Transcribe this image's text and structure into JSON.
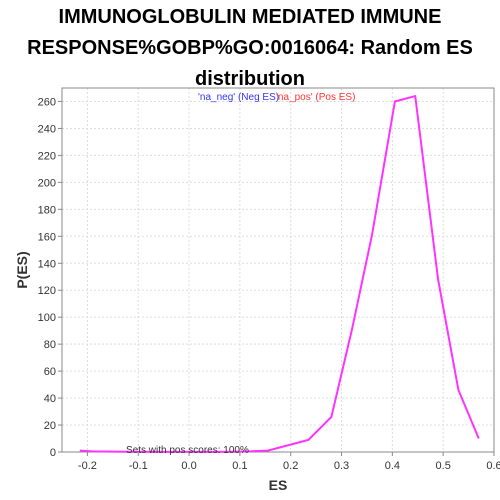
{
  "chart_data": {
    "type": "line",
    "title_lines": [
      "IMMUNOGLOBULIN MEDIATED IMMUNE",
      "RESPONSE%GOBP%GO:0016064: Random ES",
      "distribution"
    ],
    "xlabel": "ES",
    "ylabel": "P(ES)",
    "xlim": [
      -0.25,
      0.6
    ],
    "ylim": [
      0,
      270
    ],
    "xticks": [
      -0.2,
      -0.1,
      0.0,
      0.1,
      0.2,
      0.3,
      0.4,
      0.5,
      0.6
    ],
    "xtick_labels": [
      "-0.2",
      "-0.1",
      "0.0",
      "0.1",
      "0.2",
      "0.3",
      "0.4",
      "0.5",
      "0.6"
    ],
    "yticks": [
      0,
      20,
      40,
      60,
      80,
      100,
      120,
      140,
      160,
      180,
      200,
      220,
      240,
      260
    ],
    "ytick_labels": [
      "0",
      "20",
      "40",
      "60",
      "80",
      "100",
      "120",
      "140",
      "160",
      "180",
      "200",
      "220",
      "240",
      "260"
    ],
    "grid": true,
    "legend": {
      "placement": "top-center",
      "entries": [
        {
          "label": "'na_neg' (Neg ES)",
          "color": "#3333ff"
        },
        {
          "label": "'na_pos' (Pos ES)",
          "color": "#ff3333"
        }
      ]
    },
    "annotation": "Sets with pos scores: 100%",
    "series": [
      {
        "color": "#ff33ff",
        "x": [
          -0.215,
          -0.19,
          -0.15,
          -0.11,
          -0.07,
          -0.03,
          0.01,
          0.05,
          0.09,
          0.12,
          0.155,
          0.195,
          0.235,
          0.28,
          0.32,
          0.36,
          0.405,
          0.445,
          0.49,
          0.53,
          0.57
        ],
        "y": [
          1,
          0.5,
          0.3,
          0.2,
          0.1,
          0.1,
          0.1,
          0.1,
          0.2,
          0.5,
          1,
          5,
          9,
          26,
          90,
          161,
          260,
          264,
          128,
          46,
          10
        ]
      }
    ]
  }
}
